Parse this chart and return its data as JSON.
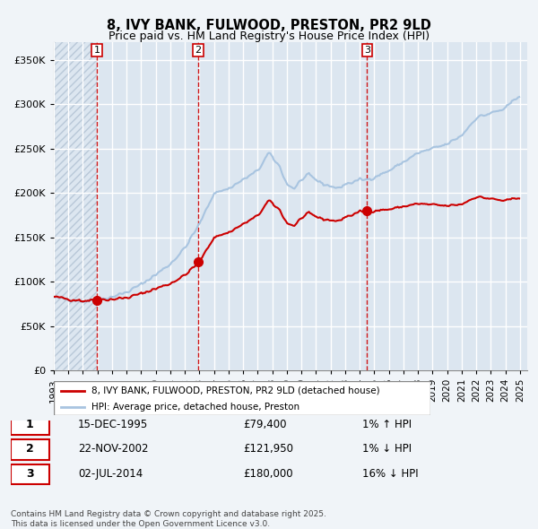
{
  "title1": "8, IVY BANK, FULWOOD, PRESTON, PR2 9LD",
  "title2": "Price paid vs. HM Land Registry's House Price Index (HPI)",
  "ylabel": "",
  "background_color": "#dce6f0",
  "plot_bg_color": "#dce6f0",
  "hatch_color": "#b8c8d8",
  "grid_color": "#ffffff",
  "hpi_color": "#a8c4e0",
  "price_color": "#cc0000",
  "sale_marker_color": "#cc0000",
  "dashed_line_color": "#cc0000",
  "sale_points": [
    {
      "num": 1,
      "year": 1995.96,
      "price": 79400,
      "label": "1",
      "date": "15-DEC-1995",
      "pct": "1%",
      "dir": "↑"
    },
    {
      "num": 2,
      "year": 2002.9,
      "price": 121950,
      "label": "2",
      "date": "22-NOV-2002",
      "pct": "1%",
      "dir": "↓"
    },
    {
      "num": 3,
      "year": 2014.5,
      "price": 180000,
      "label": "3",
      "date": "02-JUL-2014",
      "pct": "16%",
      "dir": "↓"
    }
  ],
  "legend_entries": [
    "8, IVY BANK, FULWOOD, PRESTON, PR2 9LD (detached house)",
    "HPI: Average price, detached house, Preston"
  ],
  "footer_text": "Contains HM Land Registry data © Crown copyright and database right 2025.\nThis data is licensed under the Open Government Licence v3.0.",
  "ylim": [
    0,
    370000
  ],
  "xlim_start": 1993.0,
  "xlim_end": 2025.5,
  "yticks": [
    0,
    50000,
    100000,
    150000,
    200000,
    250000,
    300000,
    350000
  ],
  "ytick_labels": [
    "£0",
    "£50K",
    "£100K",
    "£150K",
    "£200K",
    "£250K",
    "£300K",
    "£350K"
  ],
  "xtick_years": [
    1993,
    1994,
    1995,
    1996,
    1997,
    1998,
    1999,
    2000,
    2001,
    2002,
    2003,
    2004,
    2005,
    2006,
    2007,
    2008,
    2009,
    2010,
    2011,
    2012,
    2013,
    2014,
    2015,
    2016,
    2017,
    2018,
    2019,
    2020,
    2021,
    2022,
    2023,
    2024,
    2025
  ]
}
